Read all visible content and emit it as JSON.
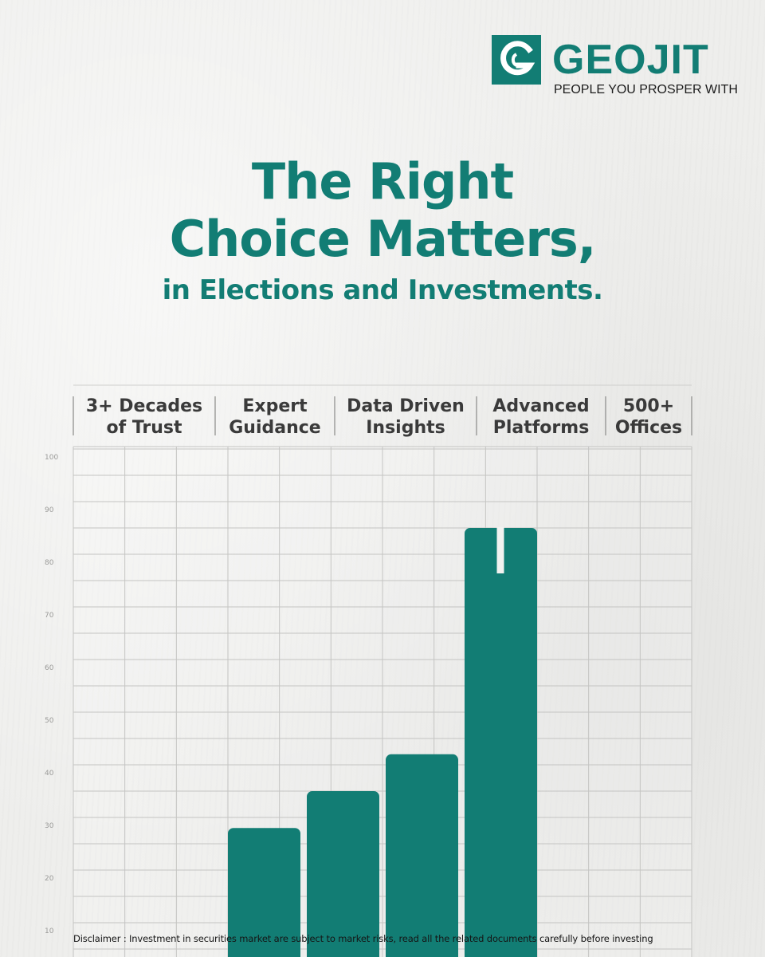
{
  "brand": {
    "name": "GEOJIT",
    "tagline": "PEOPLE YOU PROSPER WITH",
    "color": "#127d74"
  },
  "headline": {
    "line1": "The Right",
    "line2": "Choice Matters,",
    "subline": "in Elections and Investments."
  },
  "chart_data": {
    "type": "bar",
    "categories": [
      [
        "3+ Decades",
        "of Trust"
      ],
      [
        "Expert",
        "Guidance"
      ],
      [
        "Data Driven",
        "Insights"
      ],
      [
        "Advanced",
        "Platforms"
      ],
      [
        "500+",
        "Offices"
      ]
    ],
    "bars": [
      {
        "value": 28
      },
      {
        "value": 35
      },
      {
        "value": 42
      },
      {
        "value": 85,
        "marked": true
      }
    ],
    "ylim": [
      0,
      100
    ],
    "yticks": [
      10,
      20,
      30,
      40,
      50,
      60,
      70,
      80,
      90,
      100
    ],
    "grid": true,
    "bar_color": "#127d74"
  },
  "disclaimer": "Disclaimer : Investment in securities market are subject to market risks, read all the related documents carefully before investing"
}
